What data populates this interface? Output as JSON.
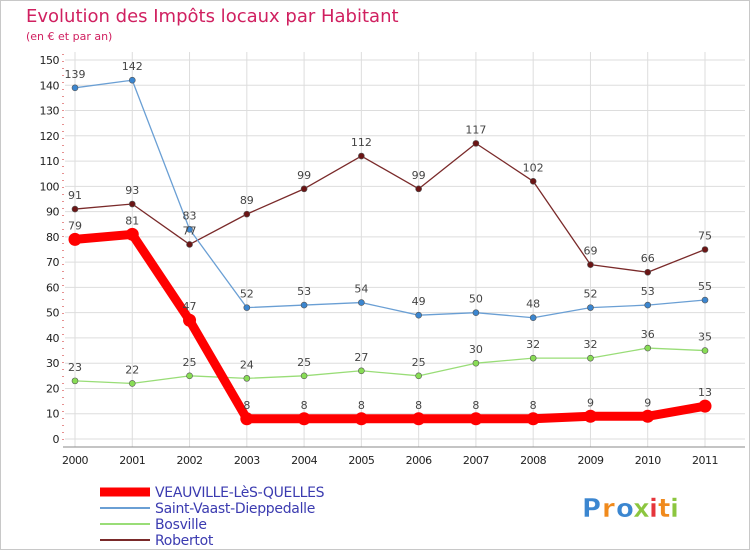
{
  "chart_data": {
    "type": "line",
    "title": "Evolution des Impôts locaux par Habitant",
    "subtitle": "(en € et par an)",
    "xlabel": "",
    "ylabel": "",
    "ylim": [
      0,
      150
    ],
    "yticks": [
      0,
      10,
      20,
      30,
      40,
      50,
      60,
      70,
      80,
      90,
      100,
      110,
      120,
      130,
      140,
      150
    ],
    "x": [
      "2000",
      "2001",
      "2002",
      "2003",
      "2004",
      "2005",
      "2006",
      "2007",
      "2008",
      "2009",
      "2010",
      "2011"
    ],
    "grid": true,
    "legend_position": "bottom-left",
    "series": [
      {
        "name": "VEAUVILLE-LèS-QUELLES",
        "color": "#ff0000",
        "style": "thick",
        "values": [
          79,
          81,
          47,
          8,
          8,
          8,
          8,
          8,
          8,
          9,
          9,
          13
        ]
      },
      {
        "name": "Saint-Vaast-Dieppedalle",
        "color": "#6a9fd4",
        "marker_color": "#3b86d0",
        "style": "thin",
        "values": [
          139,
          142,
          83,
          52,
          53,
          54,
          49,
          50,
          48,
          52,
          53,
          55
        ]
      },
      {
        "name": "Bosville",
        "color": "#99dd77",
        "marker_color": "#88dd55",
        "style": "thin",
        "values": [
          23,
          22,
          25,
          24,
          25,
          27,
          25,
          30,
          32,
          32,
          36,
          35
        ]
      },
      {
        "name": "Robertot",
        "color": "#7a2a2a",
        "marker_color": "#6b1515",
        "style": "thin",
        "values": [
          91,
          93,
          77,
          89,
          99,
          112,
          99,
          117,
          102,
          69,
          66,
          75
        ]
      }
    ]
  },
  "logo": {
    "letters": [
      "P",
      "r",
      "o",
      "x",
      "i",
      "t",
      "i"
    ],
    "colors": [
      "#3b86d0",
      "#f08a1c",
      "#3b86d0",
      "#8cc63f",
      "#e5353b",
      "#f08a1c",
      "#8cc63f"
    ]
  }
}
